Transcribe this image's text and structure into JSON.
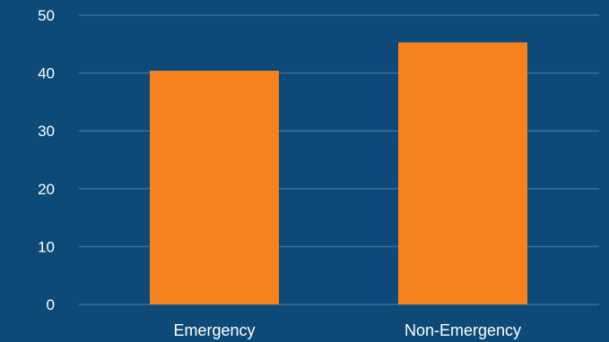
{
  "chart_data": {
    "type": "bar",
    "categories": [
      "Emergency",
      "Non-Emergency"
    ],
    "values": [
      40.4,
      45.3
    ],
    "ylim": [
      0,
      50
    ],
    "yticks": [
      0,
      10,
      20,
      30,
      40,
      50
    ],
    "grid": true,
    "title": "",
    "xlabel": "",
    "ylabel": ""
  },
  "colors": {
    "background": "#0d4a78",
    "bar": "#f5821f",
    "gridline": "#3a6f98",
    "text": "#ffffff"
  }
}
